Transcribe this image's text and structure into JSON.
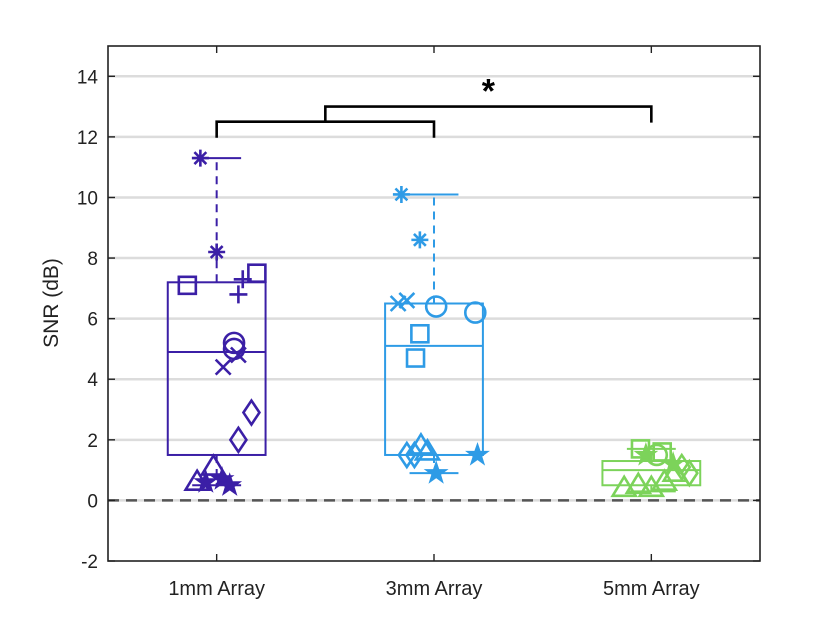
{
  "chart_data": {
    "type": "box",
    "ylabel": "SNR (dB)",
    "xlabel": "",
    "title": "",
    "ylim": [
      -2,
      15
    ],
    "yticks": [
      -2,
      0,
      2,
      4,
      6,
      8,
      10,
      12,
      14
    ],
    "ytick_labels": [
      "-2",
      "0",
      "2",
      "4",
      "6",
      "8",
      "10",
      "12",
      "14"
    ],
    "categories": [
      "1mm Array",
      "3mm Array",
      "5mm Array"
    ],
    "colors": [
      "#3B1FA6",
      "#2E9BE6",
      "#7CD35A"
    ],
    "reference_line": {
      "y": 0,
      "style": "dashed",
      "color": "#555555"
    },
    "grid": {
      "y": true,
      "x": false
    },
    "boxes": [
      {
        "name": "1mm Array",
        "q1": 1.5,
        "median": 4.9,
        "q3": 7.2,
        "whisker_low": 0.5,
        "whisker_high": 11.3
      },
      {
        "name": "3mm Array",
        "q1": 1.5,
        "median": 5.1,
        "q3": 6.5,
        "whisker_low": 0.9,
        "whisker_high": 10.1
      },
      {
        "name": "5mm Array",
        "q1": 0.5,
        "median": 1.0,
        "q3": 1.3,
        "whisker_low": 0.3,
        "whisker_high": 1.7
      }
    ],
    "points": [
      {
        "group": 0,
        "dx": -0.18,
        "y": 0.6,
        "marker": "triangle"
      },
      {
        "group": 0,
        "dx": -0.03,
        "y": 1.1,
        "marker": "triangle"
      },
      {
        "group": 0,
        "dx": -0.1,
        "y": 0.6,
        "marker": "star"
      },
      {
        "group": 0,
        "dx": 0.05,
        "y": 0.7,
        "marker": "star"
      },
      {
        "group": 0,
        "dx": 0.12,
        "y": 0.5,
        "marker": "star"
      },
      {
        "group": 0,
        "dx": 0.2,
        "y": 2.0,
        "marker": "diamond"
      },
      {
        "group": 0,
        "dx": 0.32,
        "y": 2.9,
        "marker": "diamond"
      },
      {
        "group": 0,
        "dx": 0.06,
        "y": 4.4,
        "marker": "x"
      },
      {
        "group": 0,
        "dx": 0.2,
        "y": 4.8,
        "marker": "x"
      },
      {
        "group": 0,
        "dx": 0.16,
        "y": 5.0,
        "marker": "circle"
      },
      {
        "group": 0,
        "dx": 0.16,
        "y": 5.2,
        "marker": "circle"
      },
      {
        "group": 0,
        "dx": 0.2,
        "y": 6.8,
        "marker": "plus"
      },
      {
        "group": 0,
        "dx": 0.24,
        "y": 7.3,
        "marker": "plus"
      },
      {
        "group": 0,
        "dx": -0.27,
        "y": 7.1,
        "marker": "square"
      },
      {
        "group": 0,
        "dx": 0.37,
        "y": 7.5,
        "marker": "square"
      },
      {
        "group": 0,
        "dx": 0.0,
        "y": 8.2,
        "marker": "asterisk"
      },
      {
        "group": 0,
        "dx": -0.15,
        "y": 11.3,
        "marker": "asterisk"
      },
      {
        "group": 1,
        "dx": -0.25,
        "y": 1.5,
        "marker": "diamond"
      },
      {
        "group": 1,
        "dx": -0.18,
        "y": 1.5,
        "marker": "diamond"
      },
      {
        "group": 1,
        "dx": -0.12,
        "y": 1.8,
        "marker": "triangle"
      },
      {
        "group": 1,
        "dx": -0.06,
        "y": 1.6,
        "marker": "triangle"
      },
      {
        "group": 1,
        "dx": 0.02,
        "y": 0.9,
        "marker": "star"
      },
      {
        "group": 1,
        "dx": 0.4,
        "y": 1.5,
        "marker": "star"
      },
      {
        "group": 1,
        "dx": -0.17,
        "y": 4.7,
        "marker": "square"
      },
      {
        "group": 1,
        "dx": -0.13,
        "y": 5.5,
        "marker": "square"
      },
      {
        "group": 1,
        "dx": 0.02,
        "y": 6.4,
        "marker": "circle"
      },
      {
        "group": 1,
        "dx": 0.38,
        "y": 6.2,
        "marker": "circle"
      },
      {
        "group": 1,
        "dx": -0.33,
        "y": 6.5,
        "marker": "x"
      },
      {
        "group": 1,
        "dx": -0.25,
        "y": 6.6,
        "marker": "x"
      },
      {
        "group": 1,
        "dx": -0.13,
        "y": 8.6,
        "marker": "asterisk"
      },
      {
        "group": 1,
        "dx": -0.3,
        "y": 10.1,
        "marker": "asterisk"
      },
      {
        "group": 2,
        "dx": -0.25,
        "y": 0.4,
        "marker": "triangle"
      },
      {
        "group": 2,
        "dx": -0.12,
        "y": 0.5,
        "marker": "triangle"
      },
      {
        "group": 2,
        "dx": 0.0,
        "y": 0.4,
        "marker": "triangle"
      },
      {
        "group": 2,
        "dx": 0.12,
        "y": 0.6,
        "marker": "triangle"
      },
      {
        "group": 2,
        "dx": 0.22,
        "y": 0.9,
        "marker": "triangle"
      },
      {
        "group": 2,
        "dx": -0.05,
        "y": 1.5,
        "marker": "star"
      },
      {
        "group": 2,
        "dx": 0.2,
        "y": 1.2,
        "marker": "star"
      },
      {
        "group": 2,
        "dx": -0.1,
        "y": 1.7,
        "marker": "square"
      },
      {
        "group": 2,
        "dx": 0.05,
        "y": 1.5,
        "marker": "circle"
      },
      {
        "group": 2,
        "dx": 0.1,
        "y": 1.6,
        "marker": "square"
      },
      {
        "group": 2,
        "dx": 0.28,
        "y": 1.1,
        "marker": "diamond"
      },
      {
        "group": 2,
        "dx": 0.35,
        "y": 0.9,
        "marker": "diamond"
      }
    ],
    "significance": {
      "label": "*",
      "inner_bracket": {
        "from": 0,
        "to": 1,
        "y": 12.5
      },
      "outer_bracket": {
        "from_mid_of": [
          0,
          1
        ],
        "to": 2,
        "y": 13.0
      }
    }
  }
}
